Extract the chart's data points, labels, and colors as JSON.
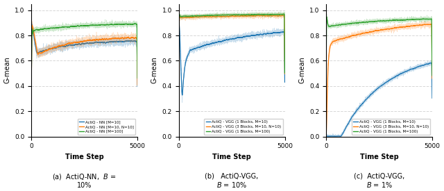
{
  "figsize": [
    6.4,
    2.75
  ],
  "dpi": 100,
  "n_steps": 5000,
  "subplots": [
    {
      "xlabel": "Time Step",
      "ylabel": "G-mean",
      "lines": [
        {
          "label": "ActiQ - NN [M=10]",
          "color": "#1f77b4"
        },
        {
          "label": "ActiQ - NN [M=10, N=10]",
          "color": "#ff7f0e"
        },
        {
          "label": "ActiQ - NN [M=100]",
          "color": "#2ca02c"
        }
      ],
      "ylim": [
        0.0,
        1.05
      ],
      "yticks": [
        0.0,
        0.2,
        0.4,
        0.6,
        0.8,
        1.0
      ],
      "legend_loc": "lower right"
    },
    {
      "xlabel": "Time Step",
      "ylabel": "G-mean",
      "lines": [
        {
          "label": "ActiQ - VGG (1 Blocks, M=10)",
          "color": "#1f77b4"
        },
        {
          "label": "ActiQ - VGG (3 Blocks, M=10, N=10)",
          "color": "#ff7f0e"
        },
        {
          "label": "ActiQ - VGG (1 Blocks, M=100)",
          "color": "#2ca02c"
        }
      ],
      "ylim": [
        0.0,
        1.05
      ],
      "yticks": [
        0.0,
        0.2,
        0.4,
        0.6,
        0.8,
        1.0
      ],
      "legend_loc": "lower right"
    },
    {
      "xlabel": "Time Step",
      "ylabel": "G-mean",
      "lines": [
        {
          "label": "ActiQ - VGG (1 Blocks, M=10)",
          "color": "#1f77b4"
        },
        {
          "label": "ActiQ - VGG (3 Blocks, M=10, N=10)",
          "color": "#ff7f0e"
        },
        {
          "label": "ActiQ - VGG (1 Blocks, M=100)",
          "color": "#2ca02c"
        }
      ],
      "ylim": [
        0.0,
        1.05
      ],
      "yticks": [
        0.0,
        0.2,
        0.4,
        0.6,
        0.8,
        1.0
      ],
      "legend_loc": "lower right"
    }
  ],
  "caption_texts": [
    "(a)  ActiQ-NN,  $B$ =\n10%",
    "(b)   ActiQ-VGG,\n$B$ = 10%",
    "(c)  ActiQ-VGG,\n$B$ = 1%"
  ],
  "grid_color": "#d3d3d3",
  "grid_linestyle": "--",
  "line_width": 0.8
}
